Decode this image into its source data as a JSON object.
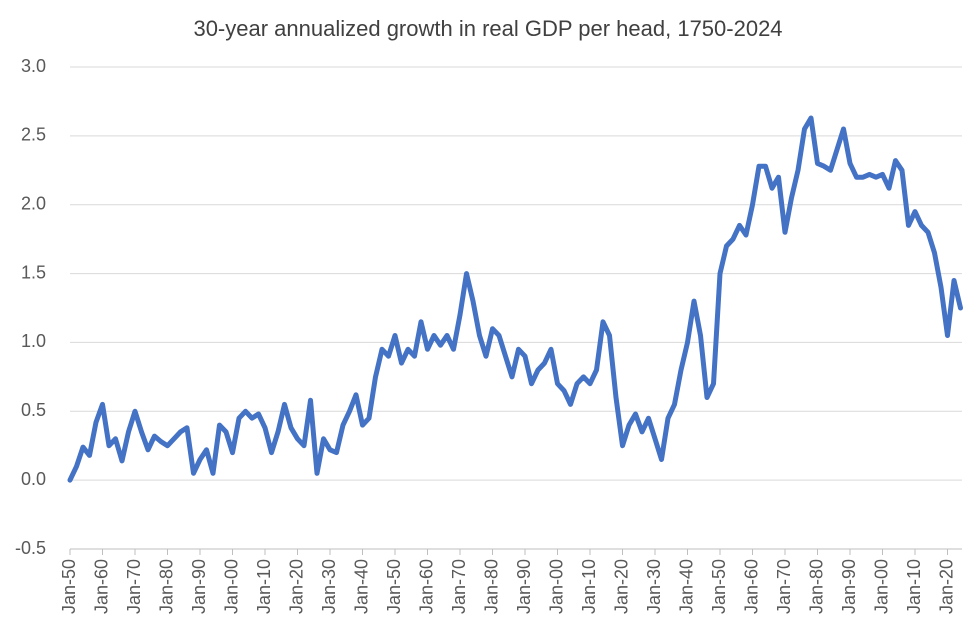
{
  "chart_data": {
    "type": "line",
    "title": "30-year annualized growth in real GDP per head, 1750-2024",
    "categories": [
      "Jan-50",
      null,
      null,
      null,
      null,
      "Jan-60",
      null,
      null,
      null,
      null,
      "Jan-70",
      null,
      null,
      null,
      null,
      "Jan-80",
      null,
      null,
      null,
      null,
      "Jan-90",
      null,
      null,
      null,
      null,
      "Jan-00",
      null,
      null,
      null,
      null,
      "Jan-10",
      null,
      null,
      null,
      null,
      "Jan-20",
      null,
      null,
      null,
      null,
      "Jan-30",
      null,
      null,
      null,
      null,
      "Jan-40",
      null,
      null,
      null,
      null,
      "Jan-50",
      null,
      null,
      null,
      null,
      "Jan-60",
      null,
      null,
      null,
      null,
      "Jan-70",
      null,
      null,
      null,
      null,
      "Jan-80",
      null,
      null,
      null,
      null,
      "Jan-90",
      null,
      null,
      null,
      null,
      "Jan-00",
      null,
      null,
      null,
      null,
      "Jan-10",
      null,
      null,
      null,
      null,
      "Jan-20",
      null,
      null,
      null,
      null,
      "Jan-30",
      null,
      null,
      null,
      null,
      "Jan-40",
      null,
      null,
      null,
      null,
      "Jan-50",
      null,
      null,
      null,
      null,
      "Jan-60",
      null,
      null,
      null,
      null,
      "Jan-70",
      null,
      null,
      null,
      null,
      "Jan-80",
      null,
      null,
      null,
      null,
      "Jan-90",
      null,
      null,
      null,
      null,
      "Jan-00",
      null,
      null,
      null,
      null,
      "Jan-10",
      null,
      null,
      null,
      null,
      "Jan-20",
      null,
      null
    ],
    "series": [
      {
        "color": "#4472c4",
        "values": [
          0.0,
          0.1,
          0.24,
          0.18,
          0.42,
          0.55,
          0.25,
          0.3,
          0.14,
          0.35,
          0.5,
          0.35,
          0.22,
          0.32,
          0.28,
          0.25,
          0.3,
          0.35,
          0.38,
          0.05,
          0.15,
          0.22,
          0.05,
          0.4,
          0.35,
          0.2,
          0.45,
          0.5,
          0.45,
          0.48,
          0.38,
          0.2,
          0.35,
          0.55,
          0.38,
          0.3,
          0.25,
          0.58,
          0.05,
          0.3,
          0.22,
          0.2,
          0.4,
          0.5,
          0.62,
          0.4,
          0.45,
          0.75,
          0.95,
          0.9,
          1.05,
          0.85,
          0.95,
          0.9,
          1.15,
          0.95,
          1.05,
          0.98,
          1.05,
          0.95,
          1.2,
          1.5,
          1.3,
          1.05,
          0.9,
          1.1,
          1.05,
          0.9,
          0.75,
          0.95,
          0.9,
          0.7,
          0.8,
          0.85,
          0.95,
          0.7,
          0.65,
          0.55,
          0.7,
          0.75,
          0.7,
          0.8,
          1.15,
          1.05,
          0.6,
          0.25,
          0.4,
          0.48,
          0.35,
          0.45,
          0.3,
          0.15,
          0.45,
          0.55,
          0.8,
          1.0,
          1.3,
          1.05,
          0.6,
          0.7,
          1.5,
          1.7,
          1.75,
          1.85,
          1.78,
          2.0,
          2.28,
          2.28,
          2.12,
          2.2,
          1.8,
          2.05,
          2.25,
          2.55,
          2.63,
          2.3,
          2.28,
          2.25,
          2.4,
          2.55,
          2.3,
          2.2,
          2.2,
          2.22,
          2.2,
          2.22,
          2.12,
          2.32,
          2.25,
          1.85,
          1.95,
          1.85,
          1.8,
          1.65,
          1.4,
          1.05,
          1.45,
          1.25
        ]
      }
    ],
    "ylim": [
      -0.5,
      3.0
    ],
    "yticks": [
      {
        "value": -0.5,
        "label": "-0.5"
      },
      {
        "value": 0,
        "label": "0.0"
      },
      {
        "value": 0.5,
        "label": "0.5"
      },
      {
        "value": 1,
        "label": "1.0"
      },
      {
        "value": 1.5,
        "label": "1.5"
      },
      {
        "value": 2,
        "label": "2.0"
      },
      {
        "value": 2.5,
        "label": "2.5"
      },
      {
        "value": 3,
        "label": "3.0"
      }
    ],
    "grid": true
  }
}
